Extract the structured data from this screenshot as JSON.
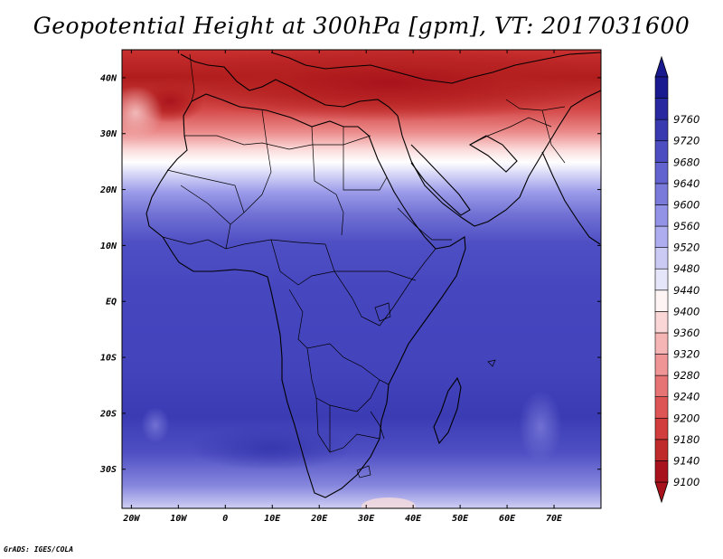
{
  "title": "Geopotential Height at 300hPa [gpm], VT: 2017031600",
  "credit": "GrADS: IGES/COLA",
  "map": {
    "lat_labels": [
      "40N",
      "30N",
      "20N",
      "10N",
      "EQ",
      "10S",
      "20S",
      "30S"
    ],
    "lon_labels": [
      "20W",
      "10W",
      "0",
      "10E",
      "20E",
      "30E",
      "40E",
      "50E",
      "60E",
      "70E"
    ],
    "lat_values": [
      40,
      30,
      20,
      10,
      0,
      -10,
      -20,
      -30
    ],
    "lon_values": [
      -20,
      -10,
      0,
      10,
      20,
      30,
      40,
      50,
      60,
      70
    ],
    "extent": {
      "lon_min": -22,
      "lon_max": 80,
      "lat_min": -37,
      "lat_max": 45
    }
  },
  "colorbar": {
    "levels": [
      "9100",
      "9140",
      "9180",
      "9200",
      "9240",
      "9280",
      "9320",
      "9360",
      "9400",
      "9440",
      "9480",
      "9520",
      "9560",
      "9600",
      "9640",
      "9680",
      "9720",
      "9760"
    ],
    "colors": [
      "#a8121c",
      "#bf2a2a",
      "#d13c3c",
      "#de5555",
      "#e77474",
      "#ef9595",
      "#f5b5b5",
      "#fad6d6",
      "#fff4f4",
      "#e6e6fb",
      "#cacaf5",
      "#adadf0",
      "#9292e7",
      "#7a7adb",
      "#6363cf",
      "#4d4dc2",
      "#3a3ab0",
      "#2828a0",
      "#1a1a90"
    ]
  }
}
